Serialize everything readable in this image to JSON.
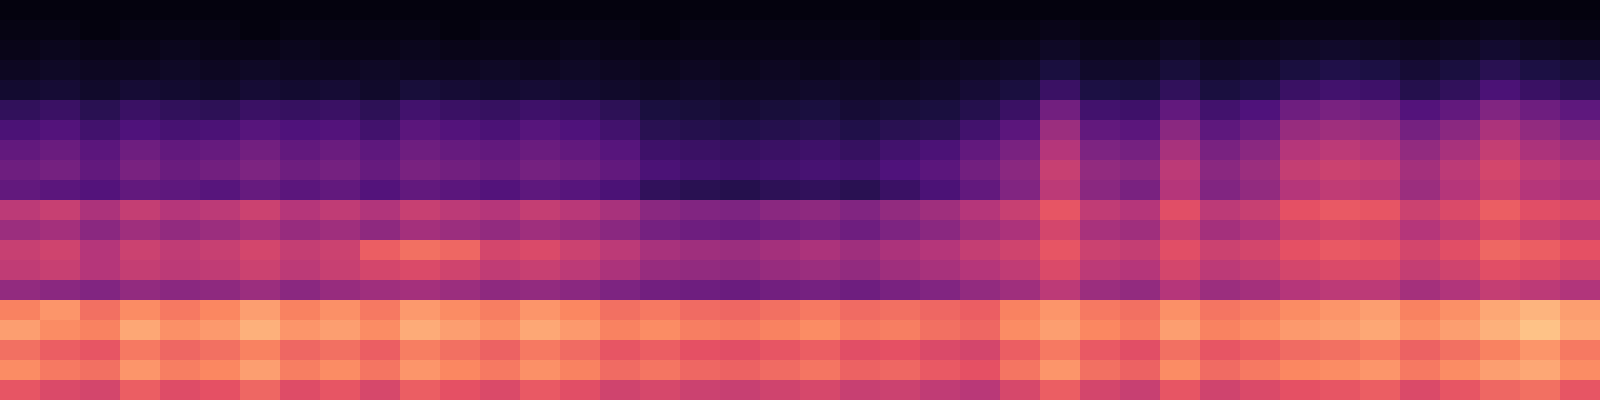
{
  "chart_data": {
    "type": "heatmap",
    "tick_labels": false,
    "zlim": [
      0,
      1
    ],
    "z": [
      [
        0.02,
        0.02,
        0.02,
        0.02,
        0.02,
        0.02,
        0.02,
        0.02,
        0.02,
        0.02,
        0.02,
        0.02,
        0.02,
        0.02,
        0.02,
        0.02,
        0.02,
        0.02,
        0.02,
        0.02,
        0.02,
        0.02,
        0.02,
        0.02,
        0.02,
        0.02,
        0.02,
        0.02,
        0.02,
        0.02,
        0.02,
        0.02,
        0.02,
        0.02,
        0.02,
        0.02,
        0.02,
        0.02,
        0.02,
        0.02
      ],
      [
        0.03,
        0.03,
        0.02,
        0.03,
        0.03,
        0.03,
        0.02,
        0.03,
        0.03,
        0.03,
        0.03,
        0.02,
        0.03,
        0.03,
        0.03,
        0.03,
        0.02,
        0.03,
        0.03,
        0.03,
        0.03,
        0.03,
        0.02,
        0.03,
        0.03,
        0.03,
        0.04,
        0.03,
        0.03,
        0.04,
        0.03,
        0.03,
        0.04,
        0.04,
        0.04,
        0.03,
        0.04,
        0.05,
        0.04,
        0.03
      ],
      [
        0.04,
        0.05,
        0.04,
        0.04,
        0.05,
        0.04,
        0.04,
        0.05,
        0.04,
        0.04,
        0.05,
        0.04,
        0.04,
        0.04,
        0.05,
        0.04,
        0.04,
        0.04,
        0.04,
        0.04,
        0.04,
        0.04,
        0.04,
        0.05,
        0.04,
        0.05,
        0.07,
        0.05,
        0.05,
        0.07,
        0.05,
        0.06,
        0.07,
        0.08,
        0.07,
        0.06,
        0.07,
        0.09,
        0.07,
        0.06
      ],
      [
        0.06,
        0.07,
        0.06,
        0.06,
        0.07,
        0.06,
        0.07,
        0.06,
        0.06,
        0.07,
        0.06,
        0.06,
        0.07,
        0.06,
        0.07,
        0.06,
        0.05,
        0.06,
        0.05,
        0.06,
        0.05,
        0.06,
        0.05,
        0.06,
        0.07,
        0.08,
        0.12,
        0.08,
        0.08,
        0.11,
        0.08,
        0.09,
        0.12,
        0.14,
        0.13,
        0.1,
        0.12,
        0.16,
        0.13,
        0.11
      ],
      [
        0.09,
        0.1,
        0.08,
        0.1,
        0.09,
        0.08,
        0.1,
        0.09,
        0.1,
        0.08,
        0.11,
        0.1,
        0.09,
        0.1,
        0.09,
        0.08,
        0.07,
        0.08,
        0.07,
        0.07,
        0.08,
        0.07,
        0.07,
        0.08,
        0.1,
        0.12,
        0.2,
        0.13,
        0.12,
        0.18,
        0.12,
        0.14,
        0.2,
        0.22,
        0.21,
        0.15,
        0.18,
        0.24,
        0.2,
        0.17
      ],
      [
        0.18,
        0.2,
        0.16,
        0.2,
        0.18,
        0.17,
        0.2,
        0.19,
        0.2,
        0.17,
        0.22,
        0.2,
        0.19,
        0.21,
        0.2,
        0.17,
        0.12,
        0.11,
        0.1,
        0.11,
        0.12,
        0.1,
        0.11,
        0.12,
        0.15,
        0.2,
        0.34,
        0.22,
        0.21,
        0.3,
        0.22,
        0.25,
        0.33,
        0.36,
        0.34,
        0.26,
        0.3,
        0.38,
        0.33,
        0.29
      ],
      [
        0.24,
        0.26,
        0.22,
        0.25,
        0.23,
        0.24,
        0.27,
        0.25,
        0.26,
        0.22,
        0.28,
        0.26,
        0.24,
        0.27,
        0.25,
        0.22,
        0.16,
        0.15,
        0.14,
        0.15,
        0.16,
        0.14,
        0.16,
        0.17,
        0.22,
        0.28,
        0.44,
        0.3,
        0.28,
        0.4,
        0.29,
        0.33,
        0.43,
        0.45,
        0.44,
        0.35,
        0.4,
        0.48,
        0.42,
        0.38
      ],
      [
        0.3,
        0.32,
        0.28,
        0.33,
        0.3,
        0.31,
        0.34,
        0.3,
        0.32,
        0.29,
        0.33,
        0.31,
        0.3,
        0.32,
        0.3,
        0.27,
        0.21,
        0.2,
        0.19,
        0.2,
        0.21,
        0.19,
        0.22,
        0.24,
        0.3,
        0.36,
        0.5,
        0.37,
        0.35,
        0.47,
        0.36,
        0.4,
        0.5,
        0.52,
        0.5,
        0.42,
        0.47,
        0.54,
        0.48,
        0.45
      ],
      [
        0.33,
        0.35,
        0.3,
        0.36,
        0.32,
        0.34,
        0.37,
        0.33,
        0.35,
        0.31,
        0.36,
        0.34,
        0.32,
        0.35,
        0.33,
        0.3,
        0.24,
        0.22,
        0.21,
        0.22,
        0.23,
        0.22,
        0.25,
        0.28,
        0.34,
        0.4,
        0.55,
        0.42,
        0.4,
        0.52,
        0.4,
        0.44,
        0.54,
        0.56,
        0.55,
        0.46,
        0.52,
        0.58,
        0.53,
        0.5
      ],
      [
        0.3,
        0.28,
        0.26,
        0.3,
        0.29,
        0.27,
        0.31,
        0.28,
        0.3,
        0.26,
        0.3,
        0.28,
        0.26,
        0.29,
        0.27,
        0.24,
        0.18,
        0.16,
        0.15,
        0.17,
        0.18,
        0.16,
        0.2,
        0.24,
        0.3,
        0.38,
        0.52,
        0.4,
        0.36,
        0.5,
        0.38,
        0.42,
        0.5,
        0.53,
        0.52,
        0.44,
        0.5,
        0.56,
        0.5,
        0.48
      ],
      [
        0.52,
        0.55,
        0.48,
        0.54,
        0.5,
        0.52,
        0.56,
        0.5,
        0.53,
        0.49,
        0.55,
        0.52,
        0.5,
        0.54,
        0.51,
        0.47,
        0.4,
        0.38,
        0.37,
        0.4,
        0.41,
        0.38,
        0.42,
        0.45,
        0.5,
        0.55,
        0.64,
        0.53,
        0.5,
        0.62,
        0.52,
        0.55,
        0.63,
        0.65,
        0.64,
        0.56,
        0.6,
        0.66,
        0.62,
        0.6
      ],
      [
        0.44,
        0.46,
        0.4,
        0.45,
        0.42,
        0.44,
        0.47,
        0.43,
        0.45,
        0.41,
        0.46,
        0.44,
        0.42,
        0.45,
        0.43,
        0.4,
        0.35,
        0.33,
        0.32,
        0.34,
        0.36,
        0.33,
        0.37,
        0.4,
        0.45,
        0.48,
        0.58,
        0.47,
        0.45,
        0.55,
        0.46,
        0.49,
        0.56,
        0.58,
        0.57,
        0.5,
        0.54,
        0.6,
        0.56,
        0.53
      ],
      [
        0.55,
        0.57,
        0.5,
        0.56,
        0.53,
        0.55,
        0.58,
        0.54,
        0.56,
        0.66,
        0.7,
        0.68,
        0.58,
        0.6,
        0.56,
        0.52,
        0.47,
        0.45,
        0.44,
        0.46,
        0.48,
        0.45,
        0.48,
        0.5,
        0.54,
        0.57,
        0.64,
        0.56,
        0.54,
        0.62,
        0.56,
        0.58,
        0.63,
        0.65,
        0.64,
        0.58,
        0.62,
        0.68,
        0.66,
        0.63
      ],
      [
        0.53,
        0.55,
        0.5,
        0.54,
        0.52,
        0.53,
        0.56,
        0.52,
        0.55,
        0.58,
        0.6,
        0.57,
        0.53,
        0.55,
        0.52,
        0.48,
        0.43,
        0.42,
        0.41,
        0.43,
        0.44,
        0.42,
        0.45,
        0.47,
        0.5,
        0.53,
        0.6,
        0.52,
        0.5,
        0.58,
        0.52,
        0.54,
        0.58,
        0.6,
        0.6,
        0.54,
        0.57,
        0.62,
        0.6,
        0.57
      ],
      [
        0.42,
        0.4,
        0.38,
        0.42,
        0.4,
        0.41,
        0.44,
        0.4,
        0.43,
        0.45,
        0.46,
        0.44,
        0.41,
        0.42,
        0.4,
        0.37,
        0.34,
        0.33,
        0.32,
        0.34,
        0.35,
        0.33,
        0.36,
        0.38,
        0.42,
        0.45,
        0.52,
        0.44,
        0.42,
        0.5,
        0.44,
        0.46,
        0.5,
        0.52,
        0.52,
        0.46,
        0.49,
        0.54,
        0.52,
        0.49
      ],
      [
        0.74,
        0.78,
        0.7,
        0.76,
        0.72,
        0.75,
        0.8,
        0.74,
        0.77,
        0.72,
        0.79,
        0.76,
        0.73,
        0.78,
        0.75,
        0.7,
        0.72,
        0.69,
        0.68,
        0.7,
        0.72,
        0.69,
        0.7,
        0.68,
        0.66,
        0.74,
        0.78,
        0.72,
        0.7,
        0.77,
        0.71,
        0.73,
        0.76,
        0.78,
        0.8,
        0.74,
        0.77,
        0.82,
        0.85,
        0.8
      ],
      [
        0.8,
        0.76,
        0.74,
        0.82,
        0.77,
        0.79,
        0.84,
        0.78,
        0.8,
        0.76,
        0.83,
        0.8,
        0.77,
        0.82,
        0.79,
        0.74,
        0.76,
        0.73,
        0.72,
        0.74,
        0.76,
        0.72,
        0.73,
        0.7,
        0.68,
        0.76,
        0.8,
        0.75,
        0.72,
        0.8,
        0.74,
        0.76,
        0.79,
        0.8,
        0.82,
        0.77,
        0.8,
        0.84,
        0.88,
        0.82
      ],
      [
        0.7,
        0.66,
        0.64,
        0.72,
        0.68,
        0.7,
        0.74,
        0.68,
        0.7,
        0.66,
        0.73,
        0.7,
        0.67,
        0.72,
        0.69,
        0.64,
        0.66,
        0.63,
        0.62,
        0.64,
        0.66,
        0.62,
        0.63,
        0.6,
        0.58,
        0.66,
        0.72,
        0.65,
        0.62,
        0.7,
        0.64,
        0.66,
        0.69,
        0.7,
        0.72,
        0.67,
        0.7,
        0.74,
        0.78,
        0.72
      ],
      [
        0.76,
        0.72,
        0.7,
        0.78,
        0.73,
        0.75,
        0.8,
        0.73,
        0.76,
        0.71,
        0.78,
        0.75,
        0.72,
        0.77,
        0.74,
        0.69,
        0.71,
        0.68,
        0.67,
        0.69,
        0.71,
        0.67,
        0.68,
        0.65,
        0.63,
        0.71,
        0.78,
        0.7,
        0.67,
        0.76,
        0.69,
        0.72,
        0.75,
        0.76,
        0.78,
        0.72,
        0.76,
        0.8,
        0.82,
        0.76
      ],
      [
        0.64,
        0.6,
        0.58,
        0.66,
        0.61,
        0.63,
        0.68,
        0.61,
        0.64,
        0.59,
        0.66,
        0.63,
        0.6,
        0.65,
        0.62,
        0.57,
        0.59,
        0.56,
        0.55,
        0.57,
        0.59,
        0.55,
        0.56,
        0.53,
        0.51,
        0.59,
        0.66,
        0.58,
        0.55,
        0.64,
        0.57,
        0.6,
        0.63,
        0.64,
        0.66,
        0.6,
        0.64,
        0.68,
        0.7,
        0.64
      ]
    ]
  }
}
